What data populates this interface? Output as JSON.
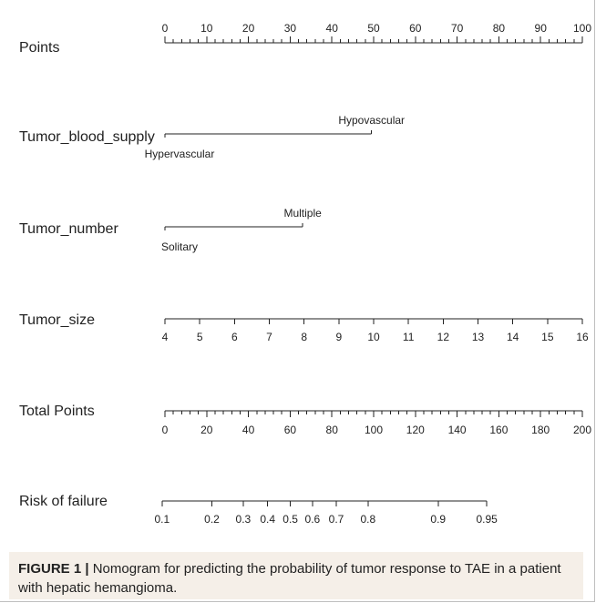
{
  "chart_data": {
    "type": "nomogram",
    "rows": [
      {
        "key": "points",
        "label": "Points",
        "kind": "scale",
        "range": [
          0,
          100
        ],
        "major_ticks": [
          0,
          10,
          20,
          30,
          40,
          50,
          60,
          70,
          80,
          90,
          100
        ],
        "minor_step": 2,
        "tick_labels": [
          "0",
          "10",
          "20",
          "30",
          "40",
          "50",
          "60",
          "70",
          "80",
          "90",
          "100"
        ]
      },
      {
        "key": "tumor_blood_supply",
        "label": "Tumor_blood_supply",
        "kind": "categorical",
        "categories": [
          {
            "name": "Hypervascular",
            "points": 0
          },
          {
            "name": "Hypovascular",
            "points": 49.5
          }
        ]
      },
      {
        "key": "tumor_number",
        "label": "Tumor_number",
        "kind": "categorical",
        "categories": [
          {
            "name": "Solitary",
            "points": 0
          },
          {
            "name": "Multiple",
            "points": 33
          }
        ]
      },
      {
        "key": "tumor_size",
        "label": "Tumor_size",
        "kind": "scale",
        "range": [
          4,
          16
        ],
        "major_ticks": [
          4,
          5,
          6,
          7,
          8,
          9,
          10,
          11,
          12,
          13,
          14,
          15,
          16
        ],
        "tick_labels": [
          "4",
          "5",
          "6",
          "7",
          "8",
          "9",
          "10",
          "11",
          "12",
          "13",
          "14",
          "15",
          "16"
        ],
        "points_range": [
          0,
          100
        ]
      },
      {
        "key": "total_points",
        "label": "Total Points",
        "kind": "scale",
        "range": [
          0,
          200
        ],
        "major_ticks": [
          0,
          20,
          40,
          60,
          80,
          100,
          120,
          140,
          160,
          180,
          200
        ],
        "minor_step": 4,
        "tick_labels": [
          "0",
          "20",
          "40",
          "60",
          "80",
          "100",
          "120",
          "140",
          "160",
          "180",
          "200"
        ]
      },
      {
        "key": "risk_of_failure",
        "label": "Risk of failure",
        "kind": "risk",
        "values": [
          0.1,
          0.2,
          0.3,
          0.4,
          0.5,
          0.6,
          0.7,
          0.8,
          0.9,
          0.95
        ],
        "tick_labels": [
          "0.1",
          "0.2",
          "0.3",
          "0.4",
          "0.5",
          "0.6",
          "0.7",
          "0.8",
          "0.9",
          "0.95"
        ],
        "total_points_at": [
          -1.4,
          22.5,
          37.5,
          49.2,
          60.1,
          70.7,
          82.1,
          97.3,
          130.9,
          154.2
        ]
      }
    ]
  },
  "caption": {
    "label": "FIGURE 1 |",
    "text": " Nomogram for predicting the probability of tumor response to TAE in a patient with hepatic hemangioma."
  }
}
